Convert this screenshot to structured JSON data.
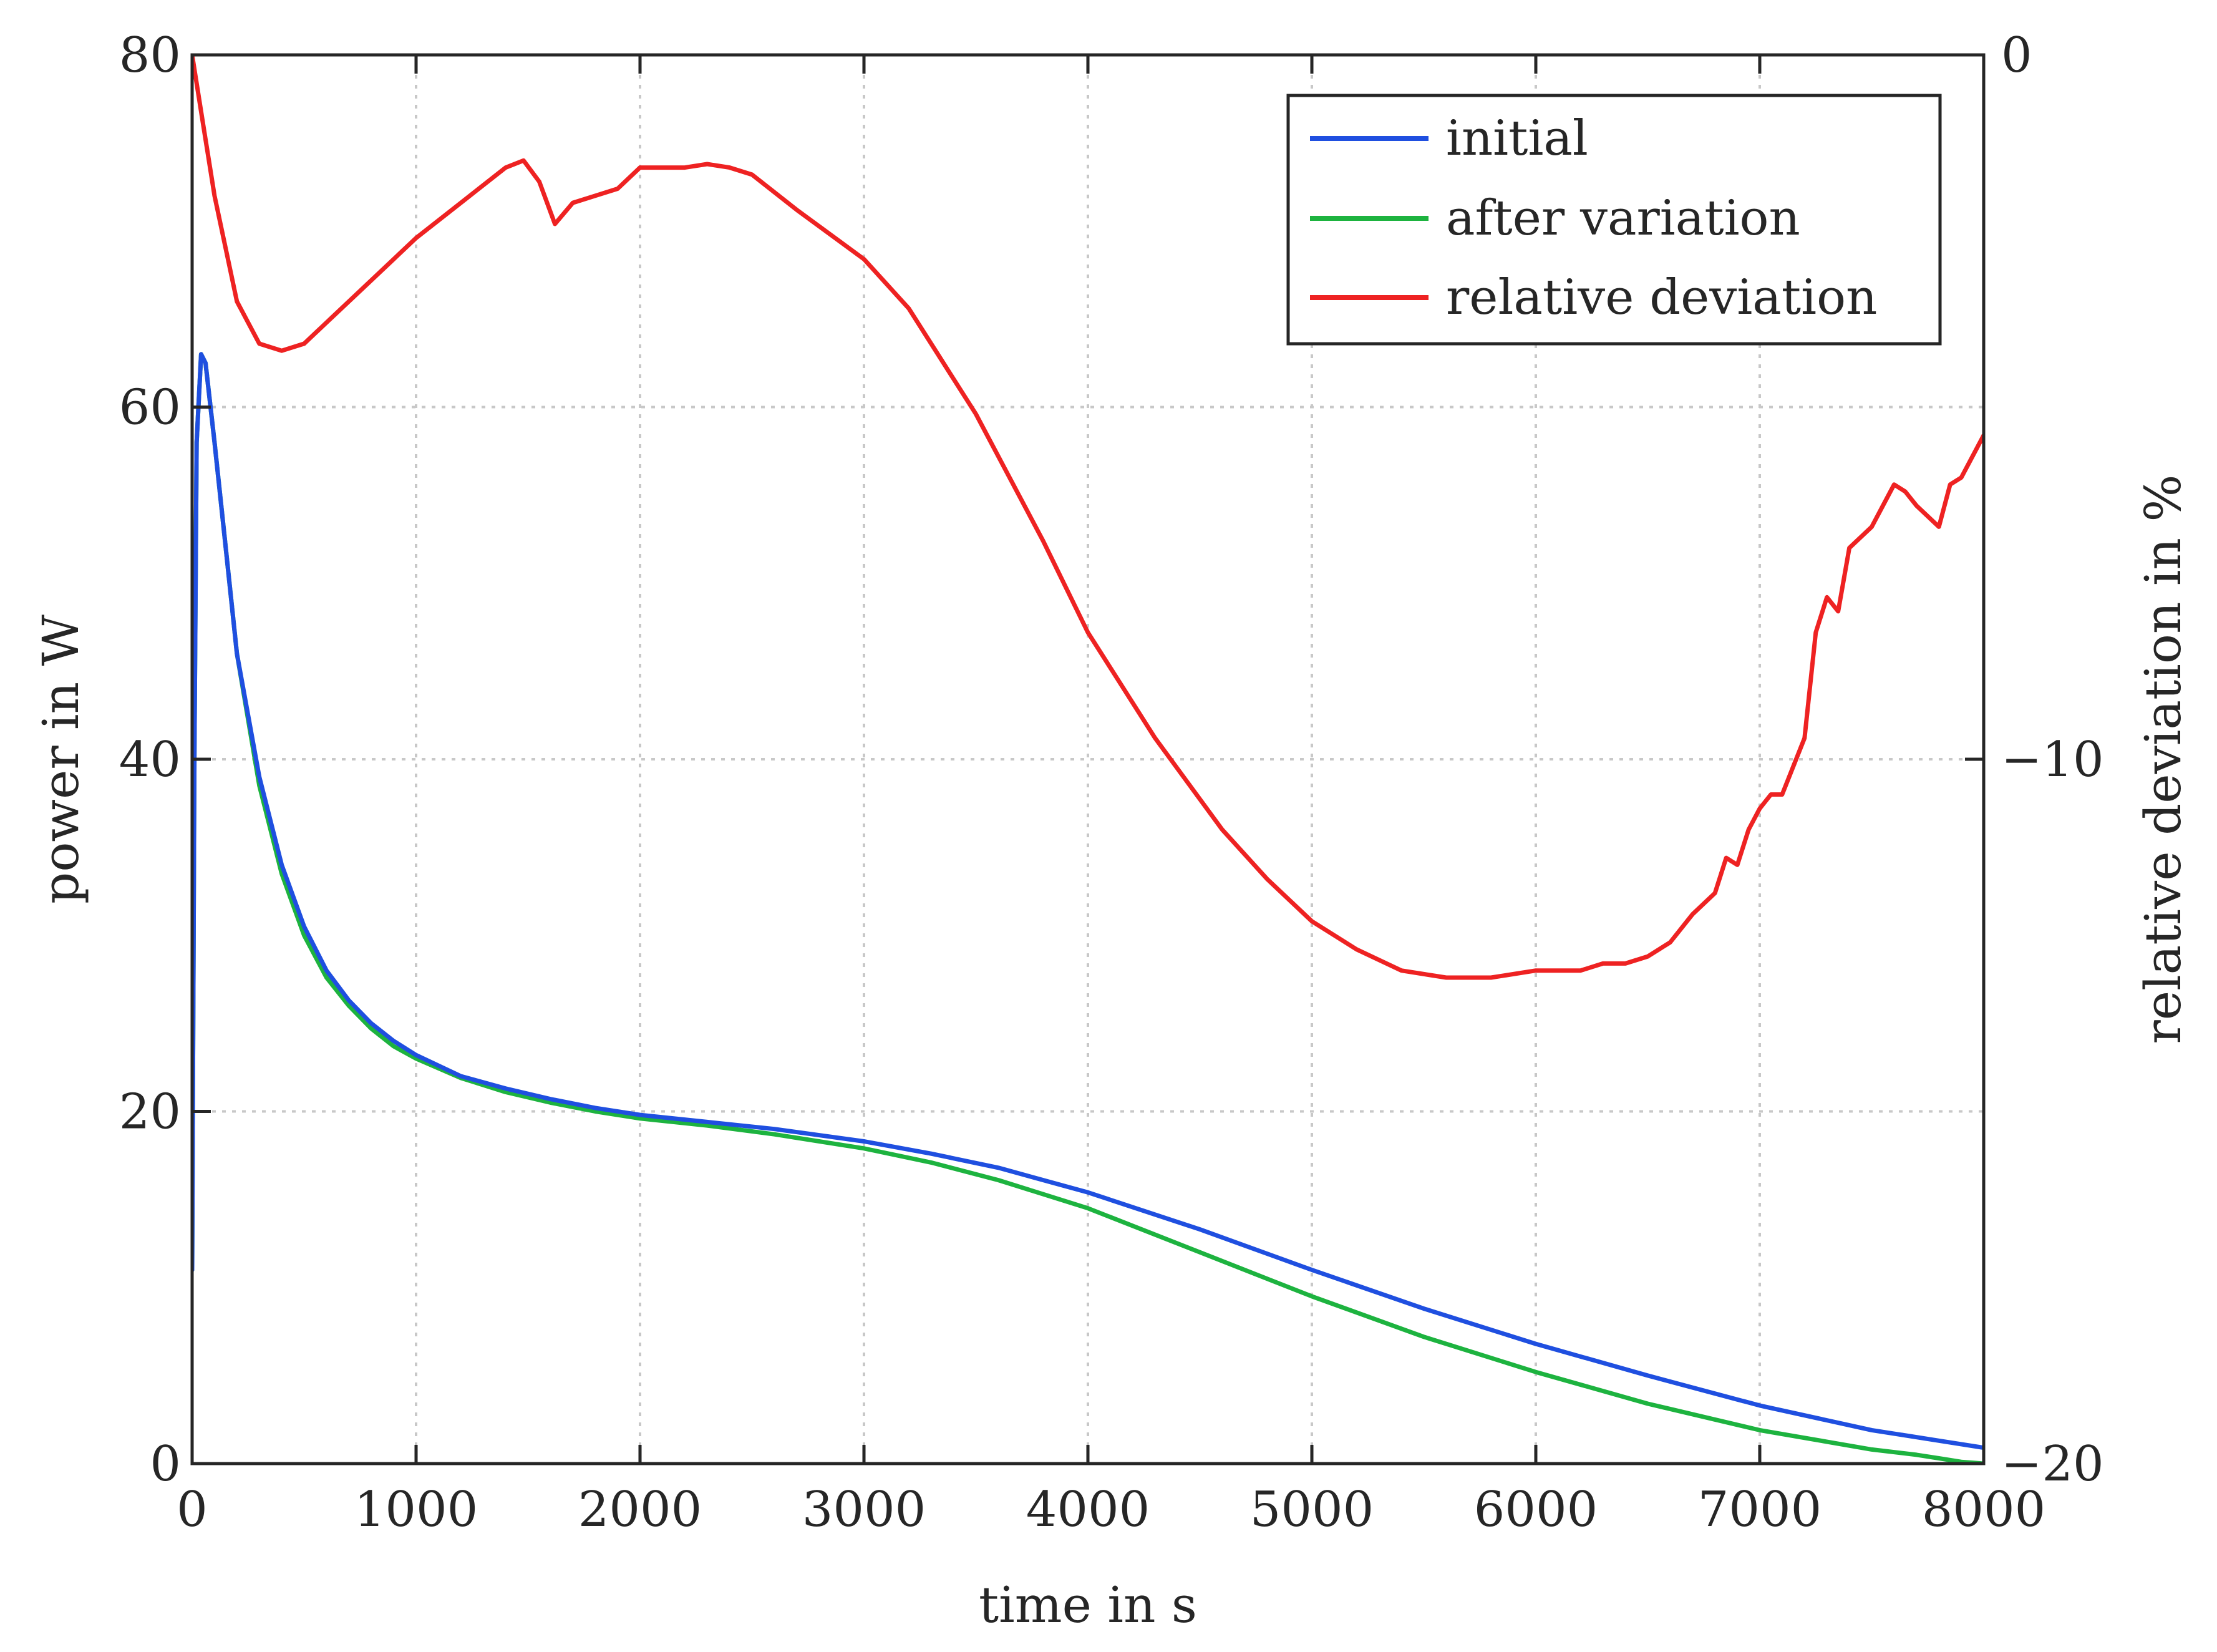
{
  "chart_data": {
    "type": "line",
    "xlabel": "time in s",
    "ylabel_left": "power in W",
    "ylabel_right": "relative deviation in %",
    "xlim": [
      0,
      8000
    ],
    "ylim_left": [
      0,
      80
    ],
    "ylim_right": [
      -20,
      0
    ],
    "x_ticks": [
      0,
      1000,
      2000,
      3000,
      4000,
      5000,
      6000,
      7000,
      8000
    ],
    "y_left_ticks": [
      0,
      20,
      40,
      60,
      80
    ],
    "y_right_ticks": [
      -20,
      -10,
      0
    ],
    "x_tick_labels": [
      "0",
      "1000",
      "2000",
      "3000",
      "4000",
      "5000",
      "6000",
      "7000",
      "8000"
    ],
    "y_left_tick_labels": [
      "0",
      "20",
      "40",
      "60",
      "80"
    ],
    "y_right_tick_labels": [
      "−20",
      "−10",
      "0"
    ],
    "grid": true,
    "legend_position": "top-right",
    "series": [
      {
        "name": "initial",
        "axis": "left",
        "color": "#1f4fe0",
        "x": [
          0,
          10,
          20,
          40,
          60,
          100,
          150,
          200,
          300,
          400,
          500,
          600,
          700,
          800,
          900,
          1000,
          1200,
          1400,
          1600,
          1800,
          2000,
          2300,
          2600,
          3000,
          3300,
          3600,
          4000,
          4500,
          5000,
          5500,
          6000,
          6500,
          7000,
          7500,
          7800,
          8000
        ],
        "y": [
          11,
          40,
          58,
          63,
          62.5,
          58,
          52,
          46,
          39,
          34,
          30.5,
          28,
          26.3,
          25,
          24,
          23.2,
          22,
          21.3,
          20.7,
          20.2,
          19.8,
          19.4,
          19,
          18.3,
          17.6,
          16.8,
          15.4,
          13.3,
          11,
          8.8,
          6.8,
          5,
          3.3,
          1.9,
          1.3,
          0.9
        ]
      },
      {
        "name": "after variation",
        "axis": "left",
        "color": "#1db33f",
        "x": [
          0,
          10,
          20,
          40,
          60,
          100,
          150,
          200,
          300,
          400,
          500,
          600,
          700,
          800,
          900,
          1000,
          1200,
          1400,
          1600,
          1800,
          2000,
          2300,
          2600,
          3000,
          3300,
          3600,
          4000,
          4500,
          5000,
          5500,
          6000,
          6500,
          7000,
          7500,
          7700,
          7800,
          7900,
          8000
        ],
        "y": [
          11,
          40,
          58,
          63,
          62.5,
          58,
          52,
          46,
          38.5,
          33.5,
          30,
          27.6,
          26,
          24.7,
          23.7,
          23,
          21.9,
          21.1,
          20.5,
          20,
          19.6,
          19.2,
          18.7,
          17.9,
          17.1,
          16.1,
          14.5,
          12,
          9.5,
          7.2,
          5.2,
          3.4,
          1.9,
          0.8,
          0.5,
          0.3,
          0.1,
          0
        ]
      },
      {
        "name": "relative deviation",
        "axis": "right",
        "color": "#ee2222",
        "x": [
          0,
          50,
          100,
          200,
          300,
          400,
          500,
          600,
          800,
          1000,
          1200,
          1400,
          1480,
          1550,
          1620,
          1700,
          1800,
          1900,
          2000,
          2100,
          2200,
          2300,
          2400,
          2500,
          2700,
          3000,
          3200,
          3500,
          3800,
          4000,
          4300,
          4600,
          4800,
          5000,
          5200,
          5400,
          5600,
          5800,
          6000,
          6100,
          6200,
          6300,
          6400,
          6500,
          6600,
          6700,
          6800,
          6850,
          6900,
          6950,
          7000,
          7050,
          7100,
          7200,
          7250,
          7300,
          7350,
          7400,
          7500,
          7600,
          7650,
          7700,
          7800,
          7850,
          7900,
          8000
        ],
        "y": [
          0,
          -1,
          -2,
          -3.5,
          -4.1,
          -4.2,
          -4.1,
          -3.8,
          -3.2,
          -2.6,
          -2.1,
          -1.6,
          -1.5,
          -1.8,
          -2.4,
          -2.1,
          -2,
          -1.9,
          -1.6,
          -1.6,
          -1.6,
          -1.55,
          -1.6,
          -1.7,
          -2.2,
          -2.9,
          -3.6,
          -5.1,
          -6.9,
          -8.2,
          -9.7,
          -11,
          -11.7,
          -12.3,
          -12.7,
          -13,
          -13.1,
          -13.1,
          -13,
          -13,
          -13,
          -12.9,
          -12.9,
          -12.8,
          -12.6,
          -12.2,
          -11.9,
          -11.4,
          -11.5,
          -11,
          -10.7,
          -10.5,
          -10.5,
          -9.7,
          -8.2,
          -7.7,
          -7.9,
          -7,
          -6.7,
          -6.1,
          -6.2,
          -6.4,
          -6.7,
          -6.1,
          -6,
          -5.4
        ]
      }
    ]
  }
}
